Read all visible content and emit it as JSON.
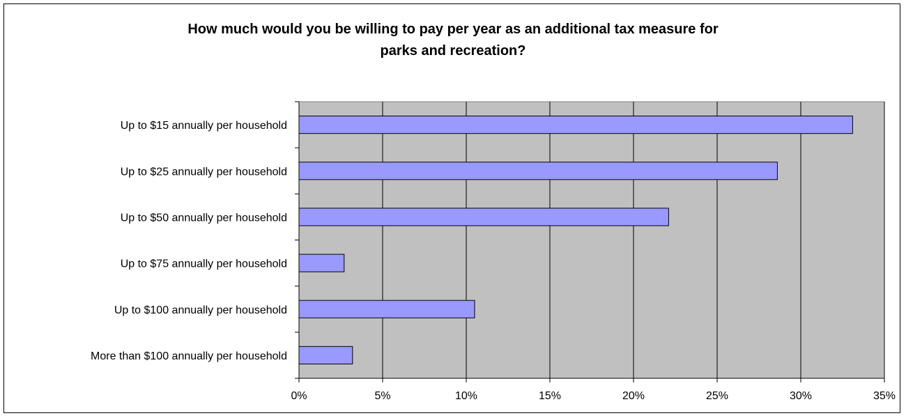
{
  "chart_data": {
    "type": "bar",
    "orientation": "horizontal",
    "title": "How much would you be willing to pay per year as an additional tax measure for parks and recreation?",
    "title_lines": [
      "How much would you be willing to pay per year as an additional tax measure for",
      "parks and recreation?"
    ],
    "categories": [
      "Up to $15 annually per household",
      "Up to $25 annually per household",
      "Up to $50 annually per household",
      "Up to $75 annually per household",
      "Up to $100 annually per household",
      "More than $100 annually per household"
    ],
    "values": [
      33.1,
      28.6,
      22.1,
      2.7,
      10.5,
      3.2
    ],
    "xlim": [
      0,
      35
    ],
    "xticks": [
      0,
      5,
      10,
      15,
      20,
      25,
      30,
      35
    ],
    "xtick_labels": [
      "0%",
      "5%",
      "10%",
      "15%",
      "20%",
      "25%",
      "30%",
      "35%"
    ],
    "value_unit": "percent",
    "xlabel": "",
    "ylabel": "",
    "grid": "vertical",
    "legend": "none",
    "colors": {
      "bar_fill": "#9999ff",
      "bar_stroke": "#000000",
      "plot_background": "#c0c0c0",
      "gridline": "#000000"
    }
  }
}
